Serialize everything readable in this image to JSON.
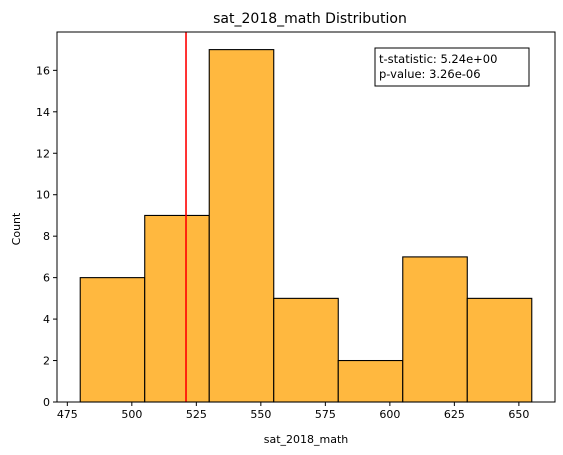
{
  "chart_data": {
    "type": "bar",
    "title": "sat_2018_math Distribution",
    "xlabel": "sat_2018_math",
    "ylabel": "Count",
    "bin_edges": [
      480,
      505,
      530,
      555,
      580,
      605,
      630,
      655
    ],
    "values": [
      6,
      9,
      17,
      5,
      2,
      7,
      5
    ],
    "xlim": [
      471,
      664
    ],
    "ylim": [
      0,
      17.85
    ],
    "x_ticks": [
      475,
      500,
      525,
      550,
      575,
      600,
      625,
      650
    ],
    "y_ticks": [
      0,
      2,
      4,
      6,
      8,
      10,
      12,
      14,
      16
    ],
    "reference_line": {
      "x": 521,
      "color": "#ff0000"
    },
    "bar_color": "#ffb83f",
    "edge_color": "#000000",
    "grid": false,
    "annotation": {
      "lines": [
        "t-statistic:  5.24e+00",
        "p-value:  3.26e-06"
      ],
      "position": "top-right"
    }
  }
}
